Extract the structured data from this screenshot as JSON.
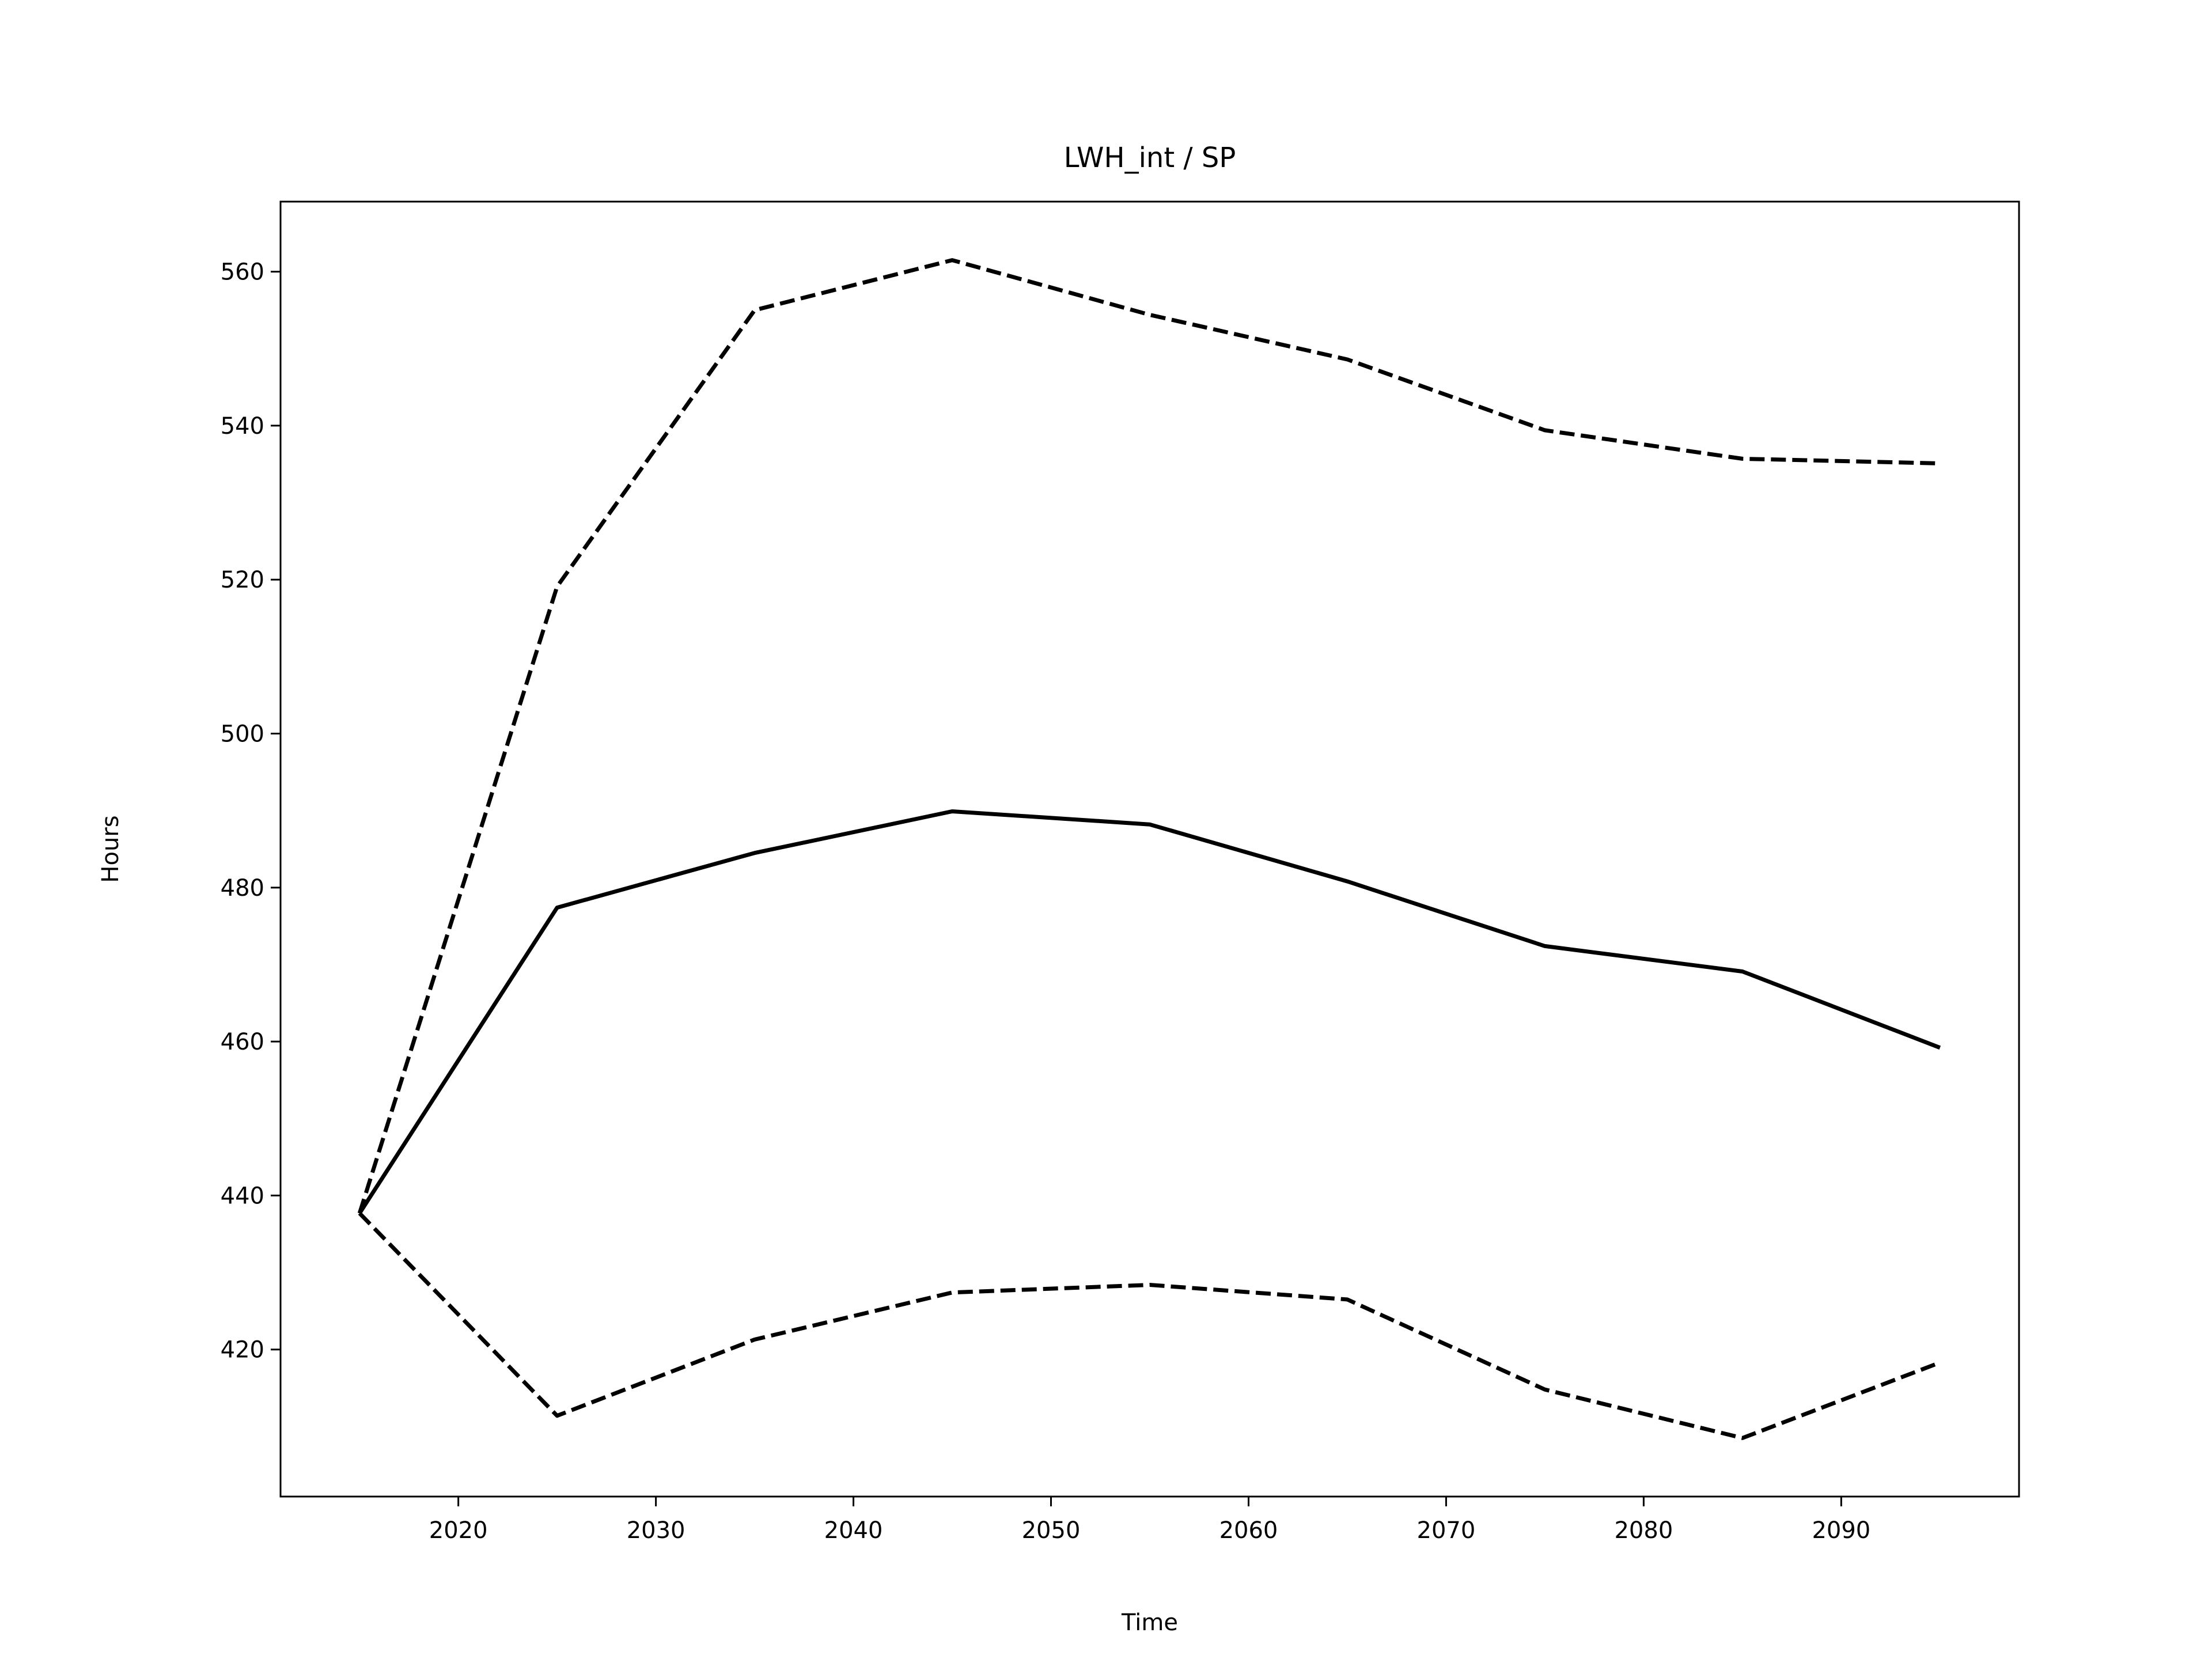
{
  "chart_data": {
    "type": "line",
    "title": "LWH_int / SP",
    "x_label": "Time",
    "y_label": "Hours",
    "x": [
      2015,
      2025,
      2035,
      2045,
      2055,
      2065,
      2075,
      2085,
      2095
    ],
    "series": [
      {
        "color": "#000000",
        "linestyle": "solid",
        "values": [
          437.7,
          477.4,
          484.5,
          489.9,
          488.2,
          480.8,
          472.4,
          469.1,
          459.2
        ]
      },
      {
        "color": "#000000",
        "linestyle": "dashed",
        "values": [
          437.7,
          519.1,
          555.0,
          561.5,
          554.4,
          548.6,
          539.4,
          535.7,
          535.1
        ]
      },
      {
        "color": "#000000",
        "linestyle": "dashed",
        "values": [
          437.7,
          411.4,
          421.3,
          427.4,
          428.4,
          426.5,
          414.8,
          408.5,
          418.3
        ]
      }
    ],
    "xlim": [
      2011,
      2099
    ],
    "xticks": [
      2020,
      2030,
      2040,
      2050,
      2060,
      2070,
      2080,
      2090
    ],
    "ylim": [
      400.9,
      569.1
    ],
    "yticks": [
      420,
      440,
      460,
      480,
      500,
      520,
      540,
      560
    ],
    "grid": false
  }
}
